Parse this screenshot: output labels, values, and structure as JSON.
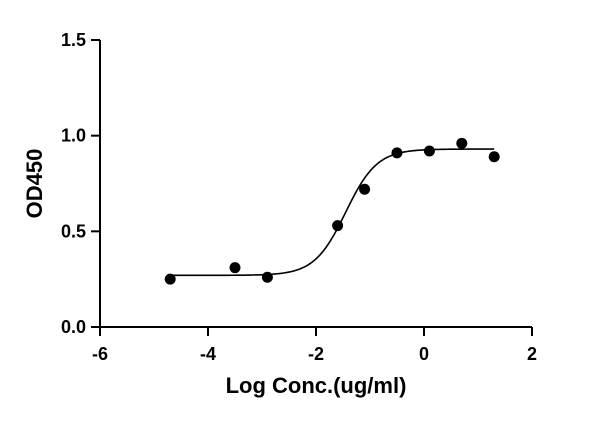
{
  "chart_data": {
    "type": "scatter",
    "title": "",
    "xlabel": "Log Conc.(ug/ml)",
    "ylabel": "OD450",
    "xlim": [
      -6,
      2
    ],
    "ylim": [
      0,
      1.5
    ],
    "x_ticks": [
      "-6",
      "-4",
      "-2",
      "0",
      "2"
    ],
    "y_ticks": [
      "0.0",
      "0.5",
      "1.0",
      "1.5"
    ],
    "grid": false,
    "legend": "none",
    "series": [
      {
        "points": [
          {
            "x": -4.7,
            "y": 0.25
          },
          {
            "x": -3.5,
            "y": 0.31
          },
          {
            "x": -2.9,
            "y": 0.26
          },
          {
            "x": -1.6,
            "y": 0.53
          },
          {
            "x": -1.1,
            "y": 0.72
          },
          {
            "x": -0.5,
            "y": 0.91
          },
          {
            "x": 0.1,
            "y": 0.92
          },
          {
            "x": 0.7,
            "y": 0.96
          },
          {
            "x": 1.3,
            "y": 0.89
          }
        ],
        "fit": {
          "model": "4PL",
          "bottom": 0.27,
          "top": 0.93,
          "log_ec50": -1.45,
          "hill_slope": 1.5,
          "x_from": -4.7,
          "x_to": 1.3
        }
      }
    ],
    "colors": {
      "marker": "#000000",
      "line": "#000000",
      "axis": "#000000"
    }
  }
}
